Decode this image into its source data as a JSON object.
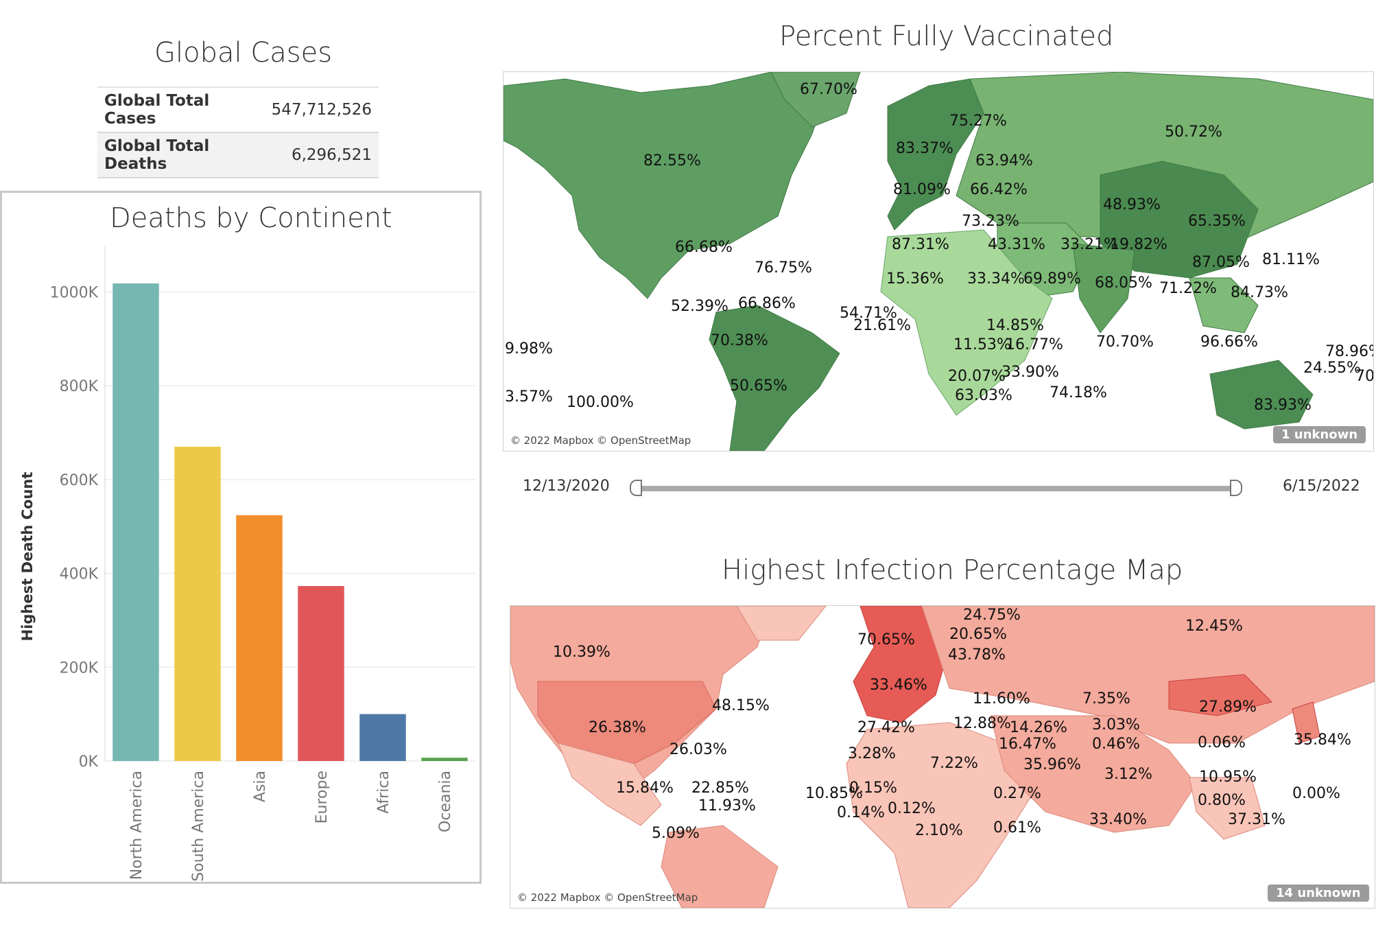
{
  "global_cases": {
    "title": "Global Cases",
    "rows": [
      {
        "label": "Global Total Cases",
        "value": "547,712,526"
      },
      {
        "label": "Global Total Deaths",
        "value": "6,296,521"
      }
    ]
  },
  "vaccination_map": {
    "title": "Percent Fully Vaccinated",
    "attribution": "© 2022 Mapbox © OpenStreetMap",
    "unknown": "1 unknown",
    "labels": [
      "67.70%",
      "75.27%",
      "83.37%",
      "50.72%",
      "82.55%",
      "63.94%",
      "81.09%",
      "66.42%",
      "48.93%",
      "65.35%",
      "73.23%",
      "87.31%",
      "43.31%",
      "33.21%",
      "19.82%",
      "66.68%",
      "87.05%",
      "81.11%",
      "76.75%",
      "68.05%",
      "15.36%",
      "33.34%",
      "69.89%",
      "71.22%",
      "84.73%",
      "52.39%",
      "66.86%",
      "54.71%",
      "21.61%",
      "14.85%",
      "70.38%",
      "11.53%",
      "16.77%",
      "70.70%",
      "96.66%",
      "9.98%",
      "78.96%",
      "24.55%",
      "70.",
      "20.07%",
      "33.90%",
      "50.65%",
      "3.57%",
      "100.00%",
      "63.03%",
      "74.18%",
      "83.93%"
    ],
    "slider": {
      "start": "12/13/2020",
      "end": "6/15/2022"
    }
  },
  "infection_map": {
    "title": "Highest Infection Percentage Map",
    "attribution": "© 2022 Mapbox © OpenStreetMap",
    "unknown": "14 unknown",
    "labels": [
      "24.75%",
      "12.45%",
      "70.65%",
      "20.65%",
      "10.39%",
      "43.78%",
      "33.46%",
      "11.60%",
      "7.35%",
      "48.15%",
      "27.89%",
      "26.38%",
      "27.42%",
      "12.88%",
      "14.26%",
      "3.03%",
      "26.03%",
      "16.47%",
      "0.46%",
      "0.06%",
      "35.84%",
      "3.28%",
      "7.22%",
      "35.96%",
      "3.12%",
      "10.95%",
      "15.84%",
      "22.85%",
      "10.85%",
      "0.15%",
      "0.27%",
      "0.00%",
      "11.93%",
      "0.80%",
      "0.14%",
      "0.12%",
      "5.09%",
      "2.10%",
      "0.61%",
      "33.40%",
      "37.31%"
    ]
  },
  "chart_data": {
    "type": "bar",
    "title": "Deaths by Continent",
    "xlabel": "",
    "ylabel": "Highest Death Count",
    "categories": [
      "North America",
      "South America",
      "Asia",
      "Europe",
      "Africa",
      "Oceania"
    ],
    "values": [
      1018000,
      670000,
      524000,
      373000,
      100000,
      7000
    ],
    "colors": [
      "#76b7b2",
      "#edc948",
      "#f28e2b",
      "#e15759",
      "#4e79a7",
      "#59a14f"
    ],
    "yticks": [
      "0K",
      "200K",
      "400K",
      "600K",
      "800K",
      "1000K"
    ],
    "ylim": [
      0,
      1100000
    ],
    "grid": true
  }
}
